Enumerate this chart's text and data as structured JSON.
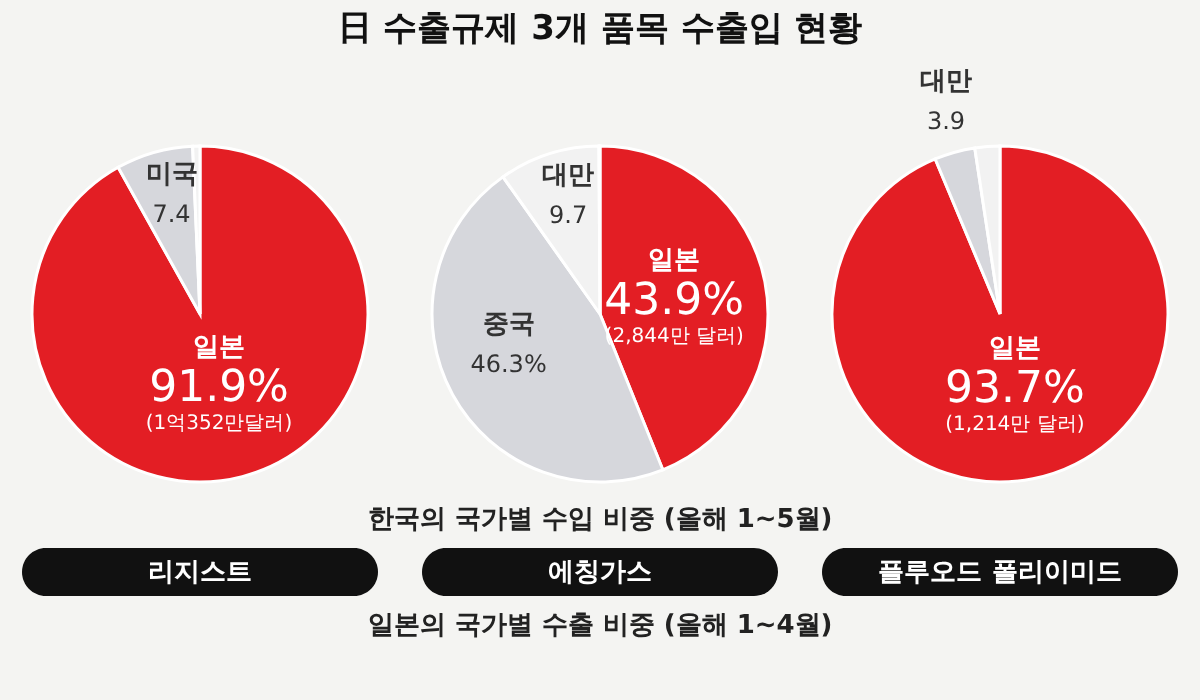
{
  "chart_data": [
    {
      "type": "pie",
      "title": "리지스트",
      "categories": [
        "일본",
        "미국",
        null
      ],
      "values": [
        91.9,
        7.4,
        0.7
      ],
      "colors": [
        "#e31e24",
        "#d6d7dc",
        "#f2f2f2"
      ],
      "value_labels": [
        "91.9%",
        "7.4",
        null
      ],
      "annotations": [
        "(1억352만달러)"
      ]
    },
    {
      "type": "pie",
      "title": "에칭가스",
      "categories": [
        "일본",
        "중국",
        "대만",
        null
      ],
      "values": [
        43.9,
        46.3,
        9.7,
        0.1
      ],
      "colors": [
        "#e31e24",
        "#d6d7dc",
        "#e9eaed",
        "#f2f2f2"
      ],
      "value_labels": [
        "43.9%",
        "46.3%",
        "9.7",
        null
      ],
      "annotations": [
        "(2,844만 달러)"
      ]
    },
    {
      "type": "pie",
      "title": "플루오드 폴리이미드",
      "categories": [
        "일본",
        "대만",
        null
      ],
      "values": [
        93.7,
        3.9,
        2.4
      ],
      "colors": [
        "#e31e24",
        "#d6d7dc",
        "#f2f2f2"
      ],
      "value_labels": [
        "93.7%",
        "3.9",
        null
      ],
      "annotations": [
        "(1,214만 달러)"
      ]
    },
    {
      "type": "other",
      "title": "日 수출규제 3개 품목 수출입 현황",
      "annotations": [
        "한국의 국가별 수입 비중 (올해 1~5월)",
        "일본의 국가별 수출 비중 (올해 1~4월)"
      ]
    }
  ]
}
